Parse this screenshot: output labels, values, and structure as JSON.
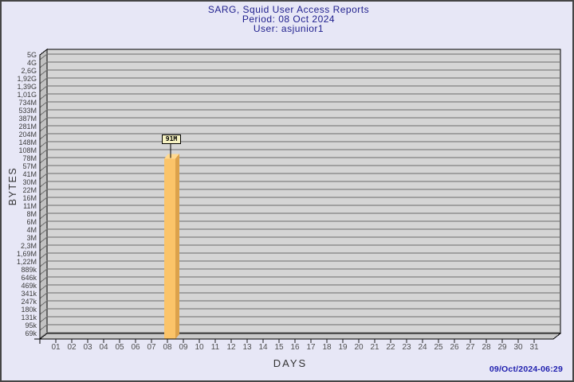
{
  "header": {
    "title": "SARG, Squid User Access Reports",
    "period": "Period: 08 Oct 2024",
    "user": "User: asjunior1"
  },
  "footer": {
    "generated": "09/Oct/2024-06:29"
  },
  "colors": {
    "page_bg": "#e7e7f6",
    "title_color": "#20208e",
    "timestamp_color": "#1e1eae",
    "bar_front": "#fbc469",
    "bar_side": "#dca24b",
    "bar_top": "#ffd98f",
    "bar_label_bg": "#f6f2c2"
  },
  "chart_data": {
    "type": "bar",
    "style": "3d",
    "title": "SARG, Squid User Access Reports",
    "subtitle": "Period: 08 Oct 2024 — User: asjunior1",
    "xlabel": "DAYS",
    "ylabel": "BYTES",
    "y_scale": "log",
    "grid": "horizontal",
    "y_tick_labels": [
      "5G",
      "4G",
      "2,6G",
      "1,92G",
      "1,39G",
      "1,01G",
      "734M",
      "533M",
      "387M",
      "281M",
      "204M",
      "148M",
      "108M",
      "78M",
      "57M",
      "41M",
      "30M",
      "22M",
      "16M",
      "11M",
      "8M",
      "6M",
      "4M",
      "3M",
      "2,3M",
      "1,69M",
      "1,22M",
      "889k",
      "646k",
      "469k",
      "341k",
      "247k",
      "180k",
      "131k",
      "95k",
      "69k"
    ],
    "x_tick_labels": [
      "01",
      "02",
      "03",
      "04",
      "05",
      "06",
      "07",
      "08",
      "09",
      "10",
      "11",
      "12",
      "13",
      "14",
      "15",
      "16",
      "17",
      "18",
      "19",
      "20",
      "21",
      "22",
      "23",
      "24",
      "25",
      "26",
      "27",
      "28",
      "29",
      "30",
      "31"
    ],
    "bars": [
      {
        "day": "08",
        "value_label": "91M",
        "value_bytes": 91000000
      }
    ]
  }
}
